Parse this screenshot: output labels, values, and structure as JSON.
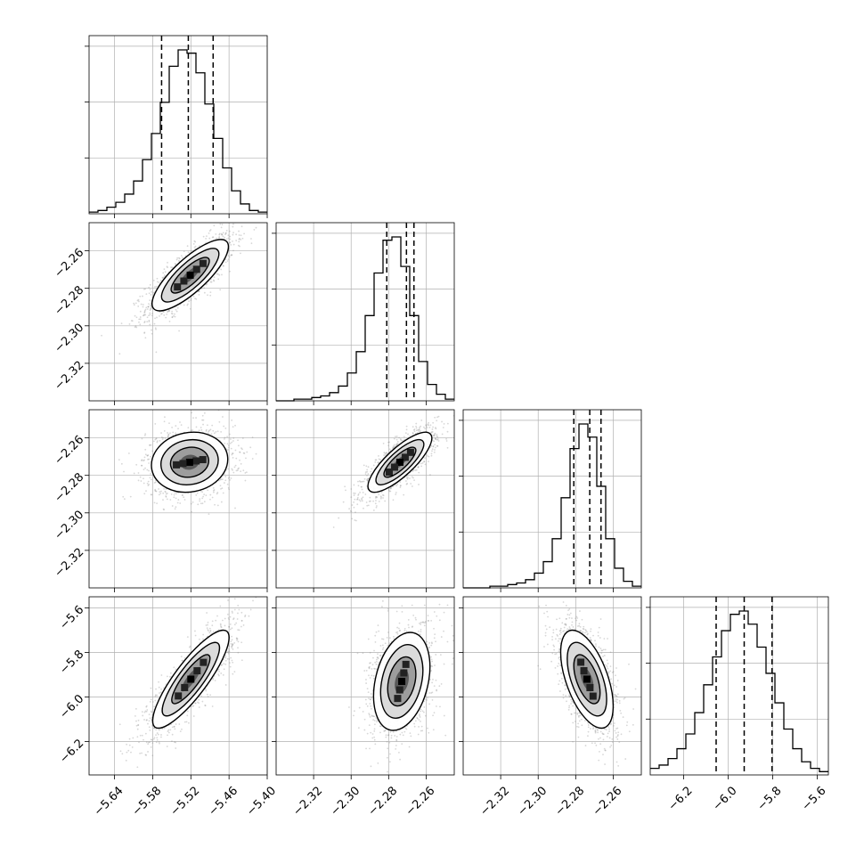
{
  "chart_data": {
    "type": "corner",
    "title": "",
    "parameters": [
      {
        "label": "",
        "range": [
          -5.68,
          -5.4
        ],
        "ticks": [
          -5.64,
          -5.58,
          -5.52,
          -5.46,
          -5.4
        ]
      },
      {
        "label": "",
        "range": [
          -2.34,
          -2.245
        ],
        "ticks": [
          -2.32,
          -2.3,
          -2.28,
          -2.26
        ]
      },
      {
        "label": "",
        "range": [
          -2.34,
          -2.245
        ],
        "ticks": [
          -2.32,
          -2.3,
          -2.28,
          -2.26
        ]
      },
      {
        "label": "",
        "range": [
          -6.35,
          -5.55
        ],
        "ticks": [
          -6.2,
          -6.0,
          -5.8,
          -5.6
        ]
      }
    ],
    "tick_labels": {
      "p0": [
        "−5.64",
        "−5.58",
        "−5.52",
        "−5.46",
        "−5.40"
      ],
      "p1": [
        "−2.32",
        "−2.30",
        "−2.28",
        "−2.26"
      ],
      "p2": [
        "−2.32",
        "−2.30",
        "−2.28",
        "−2.26"
      ],
      "p3": [
        "−6.2",
        "−6.0",
        "−5.8",
        "−5.6"
      ]
    },
    "quantiles": [
      {
        "param": "p0",
        "q16": -5.566,
        "q50": -5.524,
        "q84": -5.485
      },
      {
        "param": "p1",
        "q16": -2.281,
        "q50": -2.2705,
        "q84": -2.2665
      },
      {
        "param": "p2",
        "q16": -2.281,
        "q50": -2.2725,
        "q84": -2.2665
      },
      {
        "param": "p3",
        "q16": -6.054,
        "q50": -5.928,
        "q84": -5.803
      }
    ],
    "histograms": [
      {
        "param": "p0",
        "bins": 20,
        "counts": [
          1,
          2,
          4,
          7,
          12,
          20,
          33,
          49,
          68,
          90,
          100,
          98,
          86,
          67,
          46,
          28,
          14,
          6,
          2,
          1
        ]
      },
      {
        "param": "p1",
        "bins": 20,
        "counts": [
          0,
          0,
          1,
          1,
          2,
          3,
          5,
          9,
          17,
          30,
          52,
          78,
          98,
          100,
          82,
          52,
          24,
          10,
          4,
          1
        ]
      },
      {
        "param": "p2",
        "bins": 20,
        "counts": [
          0,
          0,
          0,
          1,
          1,
          2,
          3,
          5,
          9,
          16,
          30,
          55,
          85,
          100,
          92,
          62,
          30,
          12,
          4,
          1
        ]
      },
      {
        "param": "p3",
        "bins": 20,
        "counts": [
          4,
          6,
          10,
          16,
          25,
          38,
          55,
          72,
          88,
          98,
          100,
          92,
          78,
          62,
          44,
          28,
          16,
          8,
          4,
          2
        ]
      }
    ],
    "pairs": [
      {
        "x": "p0",
        "y": "p1",
        "mean": [
          -5.521,
          -2.273
        ],
        "sd": [
          0.03,
          0.0095
        ],
        "corr": 0.8
      },
      {
        "x": "p0",
        "y": "p2",
        "mean": [
          -5.522,
          -2.273
        ],
        "sd": [
          0.03,
          0.008
        ],
        "corr": 0.1
      },
      {
        "x": "p1",
        "y": "p2",
        "mean": [
          -2.274,
          -2.273
        ],
        "sd": [
          0.0085,
          0.008
        ],
        "corr": 0.8
      },
      {
        "x": "p0",
        "y": "p3",
        "mean": [
          -5.52,
          -5.92
        ],
        "sd": [
          0.03,
          0.11
        ],
        "corr": 0.85
      },
      {
        "x": "p1",
        "y": "p3",
        "mean": [
          -2.273,
          -5.93
        ],
        "sd": [
          0.0075,
          0.11
        ],
        "corr": 0.3
      },
      {
        "x": "p2",
        "y": "p3",
        "mean": [
          -2.274,
          -5.92
        ],
        "sd": [
          0.007,
          0.11
        ],
        "corr": -0.55
      }
    ],
    "contour_levels_sigma": [
      0.5,
      1.0,
      1.5,
      2.0
    ],
    "grid": true,
    "colors": {
      "line": "#000000",
      "grid": "#b0b0b0",
      "scatter": "#8c8c8c",
      "density_dark": "#000000",
      "density_light": "#ffffff"
    }
  }
}
